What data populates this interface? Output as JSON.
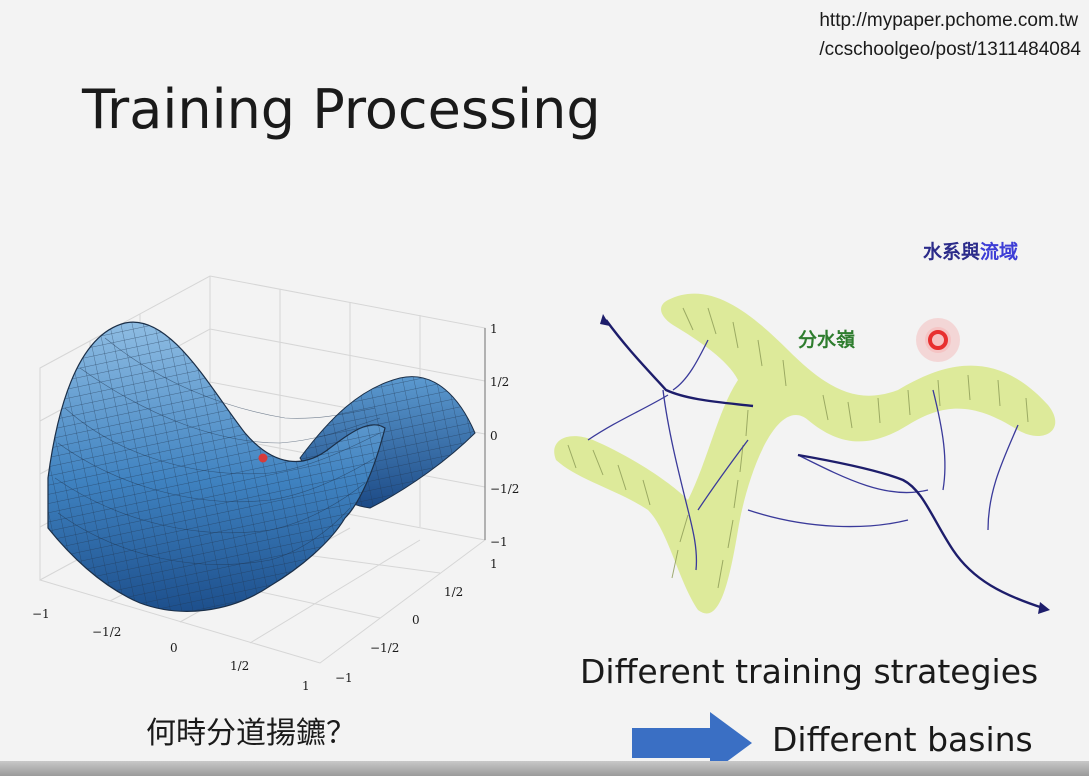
{
  "slide": {
    "source_url_line1": "http://mypaper.pchome.com.tw",
    "source_url_line2": "/ccschoolgeo/post/1311484084",
    "title": "Training Processing",
    "caption_zh": "何時分道揚鑣？",
    "strategies_text": "Different training strategies",
    "basins_text": "Different basins",
    "arrow_color": "#3a6fc4"
  },
  "saddle_plot": {
    "z_ticks": [
      "1",
      "1/2",
      "0",
      "−1/2",
      "−1"
    ],
    "y_ticks": [
      "1",
      "1/2",
      "0",
      "−1/2",
      "−1"
    ],
    "x_ticks": [
      "−1",
      "−1/2",
      "0",
      "1/2",
      "1"
    ],
    "surface_color": "#4a8cc4",
    "point_color": "#d63b3b"
  },
  "basin_map": {
    "title_part1": "水系與",
    "title_part2": "流域",
    "ridge_label": "分水嶺",
    "title_color1": "#2b2b8a",
    "title_color2": "#3d3dd6",
    "ridge_label_color": "#2e7d2e",
    "ridge_fill": "#dbe995",
    "river_color": "#23237a",
    "marker_color": "#e83030"
  }
}
